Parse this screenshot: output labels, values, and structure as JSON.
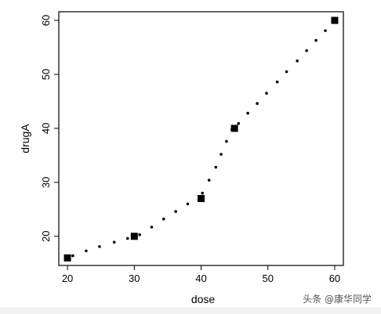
{
  "chart_data": {
    "type": "scatter",
    "title": "",
    "xlabel": "dose",
    "ylabel": "drugA",
    "xlim": [
      18.7,
      61.3
    ],
    "ylim": [
      14.6,
      61.6
    ],
    "xticks": [
      20,
      30,
      40,
      50,
      60
    ],
    "yticks": [
      20,
      30,
      40,
      50,
      60
    ],
    "grid": false,
    "legend": "none",
    "series": [
      {
        "marker": "square",
        "x": [
          20,
          30,
          40,
          45,
          60
        ],
        "y": [
          16,
          20,
          27,
          40,
          60
        ]
      },
      {
        "marker": "dot",
        "x": [
          20.0,
          20.8,
          22.8,
          24.8,
          27.0,
          29.0,
          30.8,
          32.6,
          34.4,
          36.2,
          38.0,
          40.2,
          41.2,
          42.2,
          43.0,
          43.8,
          44.6,
          45.6,
          47.0,
          48.4,
          49.8,
          51.4,
          52.8,
          54.4,
          55.8,
          57.2,
          58.6
        ],
        "y": [
          16.0,
          16.4,
          17.3,
          18.1,
          18.9,
          19.6,
          20.3,
          21.7,
          23.2,
          24.6,
          26.0,
          28.0,
          30.4,
          32.8,
          35.2,
          37.6,
          39.8,
          40.9,
          42.8,
          44.6,
          46.5,
          48.6,
          50.5,
          52.5,
          54.4,
          56.3,
          58.1
        ]
      }
    ]
  },
  "watermark": "头条 @康华同学"
}
